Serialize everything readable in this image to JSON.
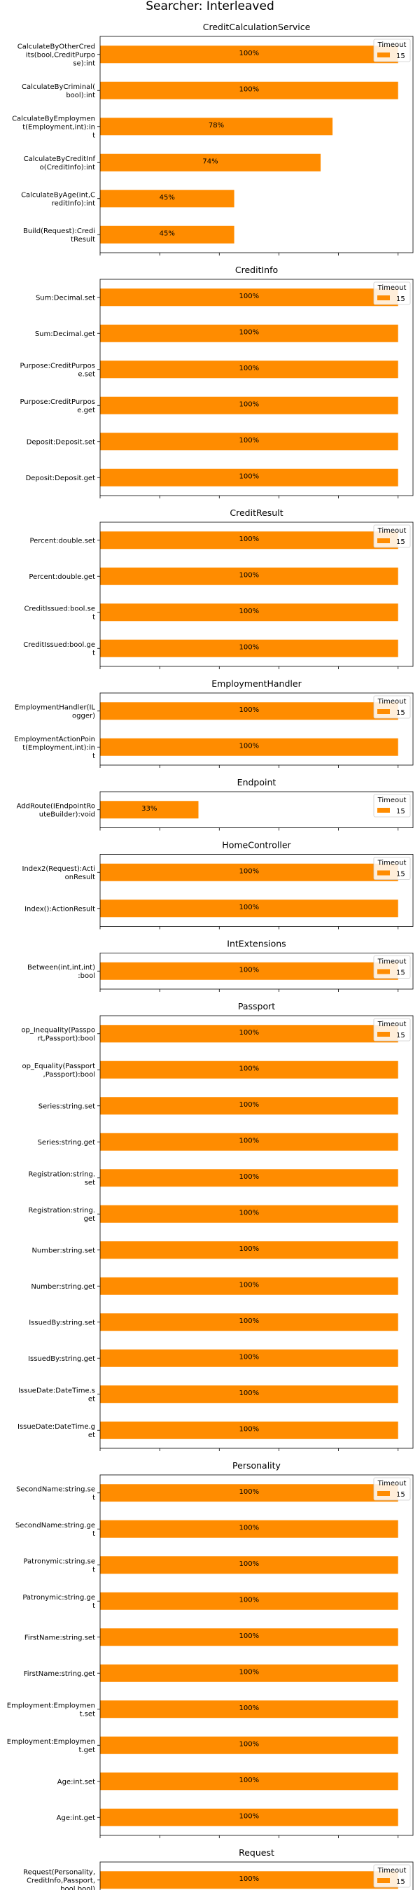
{
  "title": "Searcher: Interleaved",
  "colors": {
    "bar": "#ff8c00",
    "axis": "#000000",
    "legend_border": "#cccccc"
  },
  "legend": {
    "title": "Timeout",
    "entry": "15",
    "placement": "top-right"
  },
  "x_axis": {
    "ticks": [
      0,
      20,
      40,
      60,
      80,
      100
    ],
    "xlim": [
      0,
      105
    ]
  },
  "chart_data": [
    {
      "type": "bar",
      "orientation": "horizontal",
      "title": "CreditCalculationService",
      "categories": [
        "CalculateByOtherCred\nits(bool,CreditPurpo\nse):int",
        "CalculateByCriminal(\nbool):int",
        "CalculateByEmploymen\nt(Employment,int):in\nt",
        "CalculateByCreditInf\no(CreditInfo):int",
        "CalculateByAge(int,C\nreditInfo):int",
        "Build(Request):Credi\ntResult"
      ],
      "values": [
        100,
        100,
        78,
        74,
        45,
        45
      ],
      "labels": [
        "100%",
        "100%",
        "78%",
        "74%",
        "45%",
        "45%"
      ]
    },
    {
      "type": "bar",
      "orientation": "horizontal",
      "title": "CreditInfo",
      "categories": [
        "Sum:Decimal.set",
        "Sum:Decimal.get",
        "Purpose:CreditPurpos\ne.set",
        "Purpose:CreditPurpos\ne.get",
        "Deposit:Deposit.set",
        "Deposit:Deposit.get"
      ],
      "values": [
        100,
        100,
        100,
        100,
        100,
        100
      ],
      "labels": [
        "100%",
        "100%",
        "100%",
        "100%",
        "100%",
        "100%"
      ]
    },
    {
      "type": "bar",
      "orientation": "horizontal",
      "title": "CreditResult",
      "categories": [
        "Percent:double.set",
        "Percent:double.get",
        "CreditIssued:bool.se\nt",
        "CreditIssued:bool.ge\nt"
      ],
      "values": [
        100,
        100,
        100,
        100
      ],
      "labels": [
        "100%",
        "100%",
        "100%",
        "100%"
      ]
    },
    {
      "type": "bar",
      "orientation": "horizontal",
      "title": "EmploymentHandler",
      "categories": [
        "EmploymentHandler(IL\nogger)",
        "EmploymentActionPoin\nt(Employment,int):in\nt"
      ],
      "values": [
        100,
        100
      ],
      "labels": [
        "100%",
        "100%"
      ]
    },
    {
      "type": "bar",
      "orientation": "horizontal",
      "title": "Endpoint",
      "categories": [
        "AddRoute(IEndpointRo\nuteBuilder):void"
      ],
      "values": [
        33
      ],
      "labels": [
        "33%"
      ]
    },
    {
      "type": "bar",
      "orientation": "horizontal",
      "title": "HomeController",
      "categories": [
        "Index2(Request):Acti\nonResult",
        "Index():ActionResult"
      ],
      "values": [
        100,
        100
      ],
      "labels": [
        "100%",
        "100%"
      ]
    },
    {
      "type": "bar",
      "orientation": "horizontal",
      "title": "IntExtensions",
      "categories": [
        "Between(int,int,int)\n:bool"
      ],
      "values": [
        100
      ],
      "labels": [
        "100%"
      ]
    },
    {
      "type": "bar",
      "orientation": "horizontal",
      "title": "Passport",
      "categories": [
        "op_Inequality(Passpo\nrt,Passport):bool",
        "op_Equality(Passport\n,Passport):bool",
        "Series:string.set",
        "Series:string.get",
        "Registration:string.\nset",
        "Registration:string.\nget",
        "Number:string.set",
        "Number:string.get",
        "IssuedBy:string.set",
        "IssuedBy:string.get",
        "IssueDate:DateTime.s\net",
        "IssueDate:DateTime.g\net"
      ],
      "values": [
        100,
        100,
        100,
        100,
        100,
        100,
        100,
        100,
        100,
        100,
        100,
        100
      ],
      "labels": [
        "100%",
        "100%",
        "100%",
        "100%",
        "100%",
        "100%",
        "100%",
        "100%",
        "100%",
        "100%",
        "100%",
        "100%"
      ]
    },
    {
      "type": "bar",
      "orientation": "horizontal",
      "title": "Personality",
      "categories": [
        "SecondName:string.se\nt",
        "SecondName:string.ge\nt",
        "Patronymic:string.se\nt",
        "Patronymic:string.ge\nt",
        "FirstName:string.set",
        "FirstName:string.get",
        "Employment:Employmen\nt.set",
        "Employment:Employmen\nt.get",
        "Age:int.set",
        "Age:int.get"
      ],
      "values": [
        100,
        100,
        100,
        100,
        100,
        100,
        100,
        100,
        100,
        100
      ],
      "labels": [
        "100%",
        "100%",
        "100%",
        "100%",
        "100%",
        "100%",
        "100%",
        "100%",
        "100%",
        "100%"
      ]
    },
    {
      "type": "bar",
      "orientation": "horizontal",
      "title": "Request",
      "categories": [
        "Request(Personality,\nCreditInfo,Passport,\nbool,bool)"
      ],
      "values": [
        100
      ],
      "labels": [
        "100%"
      ]
    }
  ]
}
